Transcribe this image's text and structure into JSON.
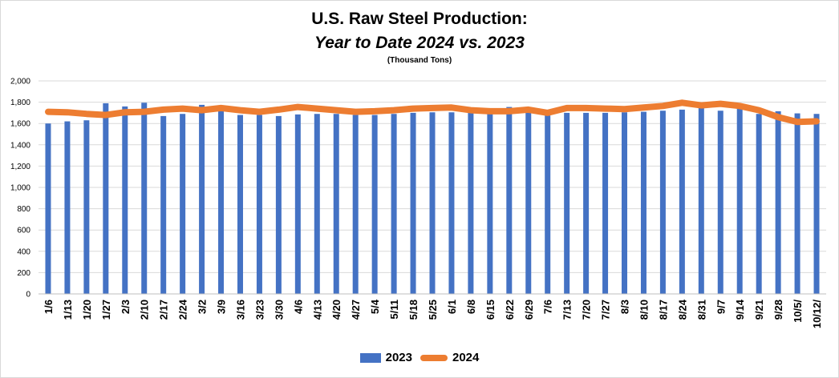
{
  "chart_data": {
    "type": "bar",
    "title": "U.S. Raw Steel Production:",
    "subtitle": "Year to Date 2024 vs. 2023",
    "units": "(Thousand Tons)",
    "xlabel": "",
    "ylabel": "",
    "ylim": [
      0,
      2000
    ],
    "yticks": [
      0,
      200,
      400,
      600,
      800,
      1000,
      1200,
      1400,
      1600,
      1800,
      2000
    ],
    "ytick_labels": [
      "0",
      "200",
      "400",
      "600",
      "800",
      "1,000",
      "1,200",
      "1,400",
      "1,600",
      "1,800",
      "2,000"
    ],
    "grid": true,
    "legend_position": "bottom",
    "categories": [
      "1/6",
      "1/13",
      "1/20",
      "1/27",
      "2/3",
      "2/10",
      "2/17",
      "2/24",
      "3/2",
      "3/9",
      "3/16",
      "3/23",
      "3/30",
      "4/6",
      "4/13",
      "4/20",
      "4/27",
      "5/4",
      "5/11",
      "5/18",
      "5/25",
      "6/1",
      "6/8",
      "6/15",
      "6/22",
      "6/29",
      "7/6",
      "7/13",
      "7/20",
      "7/27",
      "8/3",
      "8/10",
      "8/17",
      "8/24",
      "8/31",
      "9/7",
      "9/14",
      "9/21",
      "9/28",
      "10/5/",
      "10/12/"
    ],
    "series": [
      {
        "name": "2023",
        "type": "bar",
        "color": "#4472C4",
        "values": [
          1600,
          1620,
          1630,
          1790,
          1760,
          1795,
          1670,
          1690,
          1775,
          1730,
          1680,
          1680,
          1670,
          1685,
          1690,
          1690,
          1680,
          1680,
          1690,
          1700,
          1705,
          1705,
          1705,
          1695,
          1755,
          1705,
          1675,
          1700,
          1700,
          1700,
          1705,
          1710,
          1720,
          1730,
          1750,
          1720,
          1740,
          1690,
          1715,
          1695,
          1690
        ]
      },
      {
        "name": "2024",
        "type": "line",
        "color": "#ED7D31",
        "values": [
          1710,
          1705,
          1690,
          1680,
          1705,
          1710,
          1730,
          1740,
          1725,
          1745,
          1725,
          1710,
          1730,
          1755,
          1740,
          1725,
          1710,
          1715,
          1725,
          1740,
          1745,
          1750,
          1725,
          1715,
          1715,
          1730,
          1700,
          1745,
          1745,
          1740,
          1735,
          1750,
          1765,
          1795,
          1770,
          1785,
          1765,
          1725,
          1660,
          1615,
          1620
        ]
      }
    ]
  }
}
